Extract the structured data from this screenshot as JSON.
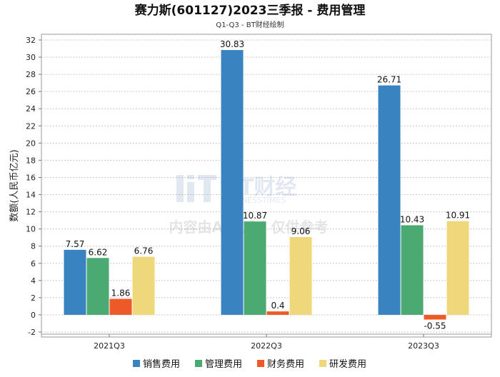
{
  "chart_data": {
    "type": "bar",
    "title": "赛力斯(601127)2023三季报 - 费用管理",
    "subtitle": "Q1-Q3 - BT财经绘制",
    "ylabel": "数额(人民币亿元)",
    "xlabel": "",
    "categories": [
      "2021Q3",
      "2022Q3",
      "2023Q3"
    ],
    "ylim": [
      -2,
      32
    ],
    "yticks": [
      -2,
      0,
      2,
      4,
      6,
      8,
      10,
      12,
      14,
      16,
      18,
      20,
      22,
      24,
      26,
      28,
      30,
      32
    ],
    "grid": true,
    "legend_position": "bottom",
    "series": [
      {
        "name": "销售费用",
        "color": "#3a83c1",
        "values": [
          7.57,
          30.83,
          26.71
        ],
        "labels": [
          "7.57",
          "30.83",
          "26.71"
        ]
      },
      {
        "name": "管理费用",
        "color": "#4aaa72",
        "values": [
          6.62,
          10.87,
          10.43
        ],
        "labels": [
          "6.62",
          "10.87",
          "10.43"
        ]
      },
      {
        "name": "财务费用",
        "color": "#ee5a27",
        "values": [
          1.86,
          0.4,
          -0.55
        ],
        "labels": [
          "1.86",
          "0.4",
          "-0.55"
        ]
      },
      {
        "name": "研发费用",
        "color": "#eed87b",
        "values": [
          6.76,
          9.06,
          10.91
        ],
        "labels": [
          "6.76",
          "9.06",
          "10.91"
        ]
      }
    ],
    "watermark": {
      "logo_text": "BT财经",
      "logo_subtext": "BUSINESSTIMES",
      "notice": "内容由AI生成，仅供参考"
    }
  }
}
